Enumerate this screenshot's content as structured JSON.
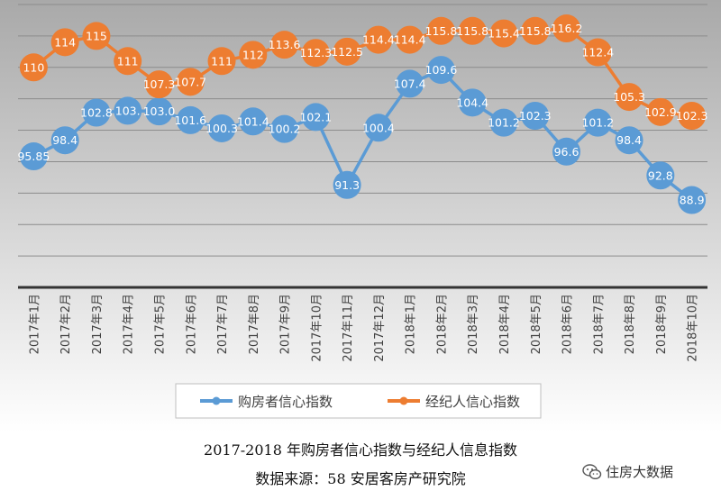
{
  "colors": {
    "panel_top": "#a9a9a9",
    "panel_bottom": "#ffffff",
    "gridline": "#8c8c8c",
    "axis_line": "#333333",
    "buyer": "#5b9bd5",
    "agent": "#ed7d31",
    "label_text": "#404040"
  },
  "chart_data": {
    "type": "line",
    "categories": [
      "2017年1月",
      "2017年2月",
      "2017年3月",
      "2017年4月",
      "2017年5月",
      "2017年6月",
      "2017年7月",
      "2017年8月",
      "2017年9月",
      "2017年10月",
      "2017年11月",
      "2017年12月",
      "2018年1月",
      "2018年2月",
      "2018年3月",
      "2018年4月",
      "2018年5月",
      "2018年6月",
      "2018年7月",
      "2018年8月",
      "2018年9月",
      "2018年10月"
    ],
    "series": [
      {
        "name": "购房者信心指数",
        "color": "#5b9bd5",
        "values": [
          95.85,
          98.4,
          102.8,
          103.1,
          103.0,
          101.6,
          100.3,
          101.4,
          100.2,
          102.1,
          91.3,
          100.4,
          107.4,
          109.6,
          104.4,
          101.2,
          102.3,
          96.6,
          101.2,
          98.4,
          92.8,
          88.9
        ],
        "labels": [
          "95.85",
          "98.4",
          "102.8",
          "103.",
          "103.0",
          "101.6",
          "100.3",
          "101.4",
          "100.2",
          "102.1",
          "91.3",
          "100.4",
          "107.4",
          "109.6",
          "104.4",
          "101.2",
          "102.3",
          "96.6",
          "101.2",
          "98.4",
          "92.8",
          "88.9"
        ]
      },
      {
        "name": "经纪人信心指数",
        "color": "#ed7d31",
        "values": [
          110,
          114,
          115,
          111,
          107.3,
          107.7,
          111,
          112,
          113.6,
          112.3,
          112.5,
          114.4,
          114.4,
          115.8,
          115.8,
          115.4,
          115.8,
          116.2,
          112.4,
          105.3,
          102.9,
          102.3
        ],
        "labels": [
          "110",
          "114",
          "115",
          "111",
          "107.3",
          "107.7",
          "111",
          "112",
          "113.6",
          "112.3",
          "112.5",
          "114.4",
          "114.4",
          "115.8",
          "115.8",
          "115.4",
          "115.8",
          "116.2",
          "112.4",
          "105.3",
          "102.9",
          "102.3"
        ]
      }
    ],
    "ylim": [
      75,
      120
    ],
    "y_gridlines": [
      80,
      85,
      90,
      95,
      100,
      105,
      110,
      115,
      120
    ],
    "grid": true,
    "legend_position": "bottom"
  },
  "caption": {
    "title": "2017-2018 年购房者信心指数与经纪人信息指数",
    "source": "数据来源：58 安居客房产研究院"
  },
  "watermark": {
    "text": "住房大数据",
    "icon": "wechat-icon"
  }
}
